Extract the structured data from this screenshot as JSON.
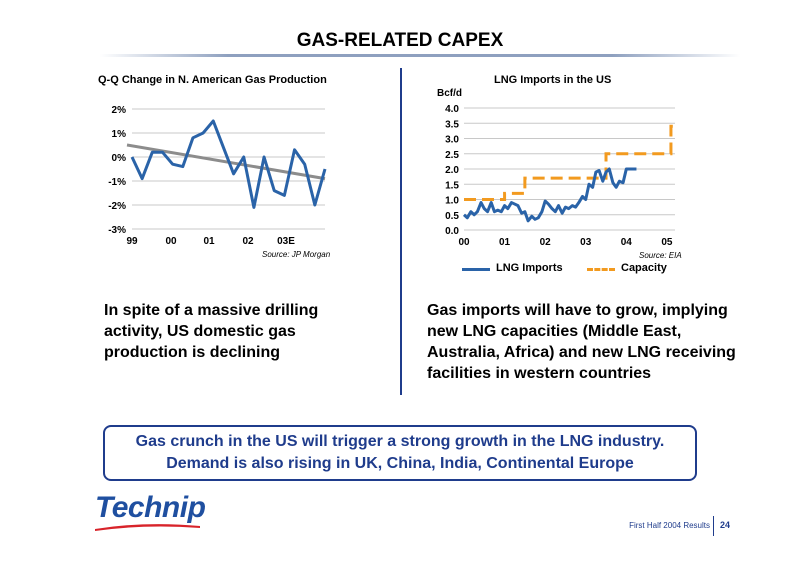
{
  "slide": {
    "title": "GAS-RELATED CAPEX",
    "caption_left": "In spite of a massive drilling activity, US domestic gas production is declining",
    "caption_right": "Gas imports will have to grow, implying new LNG capacities (Middle East, Australia, Africa) and new LNG receiving facilities in western countries",
    "callout_line1": "Gas crunch in the US will trigger a strong growth in the LNG industry.",
    "callout_line2": "Demand is also rising in UK, China, India, Continental Europe",
    "logo_text": "Technip",
    "footer_text": "First Half 2004 Results",
    "page_number": "24",
    "accent_color": "#1f3c8c"
  },
  "chart_data": [
    {
      "type": "line",
      "title": "Q-Q Change in N. American Gas Production",
      "source": "Source: JP Morgan",
      "y_ticks": [
        "2%",
        "1%",
        "0%",
        "-1%",
        "-2%",
        "-3%"
      ],
      "ylim": [
        -3,
        2
      ],
      "x_ticks": [
        "99",
        "00",
        "01",
        "02",
        "03E"
      ],
      "grid": true,
      "series": [
        {
          "name": "",
          "color": "#2a63a8",
          "values": [
            0.0,
            -0.9,
            0.2,
            0.2,
            -0.3,
            -0.4,
            0.8,
            1.0,
            1.5,
            0.4,
            -0.7,
            0.0,
            -2.1,
            0.0,
            -1.4,
            -1.6,
            0.3,
            -0.3,
            -2.0,
            -0.5
          ]
        },
        {
          "name": "",
          "color": "#8c8c8c",
          "trend": true,
          "values": [
            0.5,
            -0.9
          ]
        }
      ]
    },
    {
      "type": "line",
      "title": "LNG Imports in the US",
      "ylabel": "Bcf/d",
      "source": "Source: EIA",
      "y_ticks": [
        "4.0",
        "3.5",
        "3.0",
        "2.5",
        "2.0",
        "1.5",
        "1.0",
        "0.5",
        "0.0"
      ],
      "ylim": [
        0,
        4
      ],
      "x_ticks": [
        "00",
        "01",
        "02",
        "03",
        "04",
        "05"
      ],
      "xlim": [
        2000,
        2005.2
      ],
      "legend": "bottom",
      "series": [
        {
          "name": "LNG Imports",
          "color": "#2a63a8",
          "x": [
            2000.0,
            2000.08,
            2000.17,
            2000.25,
            2000.33,
            2000.42,
            2000.5,
            2000.58,
            2000.67,
            2000.75,
            2000.83,
            2000.92,
            2001.0,
            2001.08,
            2001.17,
            2001.25,
            2001.33,
            2001.42,
            2001.5,
            2001.58,
            2001.67,
            2001.75,
            2001.83,
            2001.92,
            2002.0,
            2002.08,
            2002.17,
            2002.25,
            2002.33,
            2002.42,
            2002.5,
            2002.58,
            2002.67,
            2002.75,
            2002.83,
            2002.92,
            2003.0,
            2003.08,
            2003.17,
            2003.25,
            2003.33,
            2003.42,
            2003.5,
            2003.58,
            2003.67,
            2003.75,
            2003.83,
            2003.92,
            2004.0,
            2004.08,
            2004.17,
            2004.25
          ],
          "values": [
            0.5,
            0.4,
            0.6,
            0.5,
            0.6,
            0.9,
            0.7,
            0.6,
            0.9,
            0.6,
            0.65,
            0.6,
            0.8,
            0.7,
            0.9,
            0.85,
            0.8,
            0.55,
            0.6,
            0.3,
            0.45,
            0.35,
            0.4,
            0.6,
            0.95,
            0.85,
            0.7,
            0.6,
            0.8,
            0.55,
            0.75,
            0.7,
            0.8,
            0.75,
            0.9,
            1.1,
            1.0,
            1.5,
            1.4,
            1.9,
            1.95,
            1.6,
            1.9,
            2.0,
            1.55,
            1.4,
            1.6,
            1.55,
            2.0,
            2.0,
            2.0,
            2.0
          ]
        },
        {
          "name": "Capacity",
          "color": "#f29a1f",
          "step": true,
          "x": [
            2000.0,
            2001.0,
            2001.5,
            2003.5,
            2005.1,
            2005.2
          ],
          "values": [
            1.0,
            1.2,
            1.7,
            2.5,
            3.4,
            3.4
          ]
        }
      ]
    }
  ]
}
